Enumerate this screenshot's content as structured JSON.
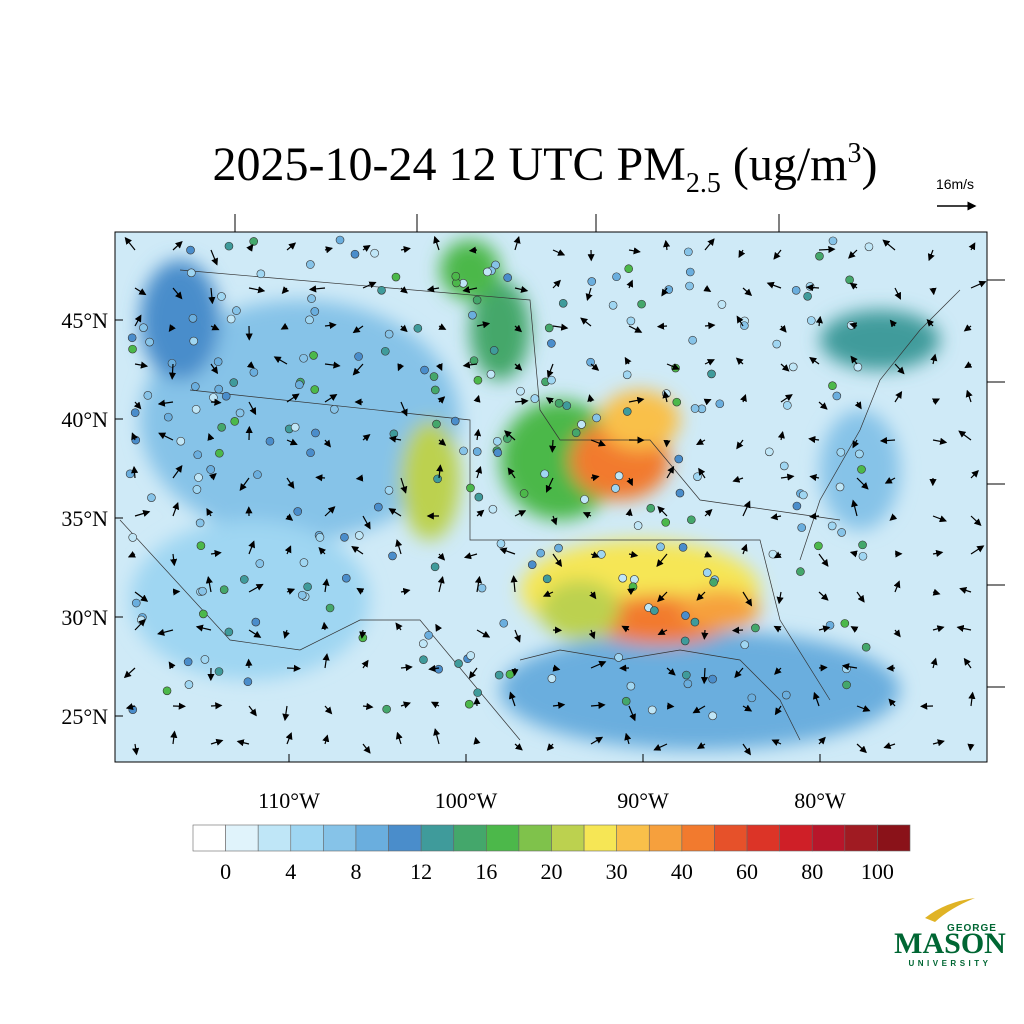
{
  "title": {
    "main": "2025-10-24 12 UTC PM",
    "sub": "2.5",
    "unit_open": " (ug/m",
    "sup": "3",
    "unit_close": ")"
  },
  "vector_reference": "16m/s",
  "lat_labels": [
    {
      "value": 45,
      "label": "45°N"
    },
    {
      "value": 40,
      "label": "40°N"
    },
    {
      "value": 35,
      "label": "35°N"
    },
    {
      "value": 30,
      "label": "30°N"
    },
    {
      "value": 25,
      "label": "25°N"
    }
  ],
  "lon_labels": [
    {
      "value": -110,
      "label": "110°W"
    },
    {
      "value": -100,
      "label": "100°W"
    },
    {
      "value": -90,
      "label": "90°W"
    },
    {
      "value": -80,
      "label": "80°W"
    }
  ],
  "colorbar": {
    "colors": [
      "#ffffff",
      "#e0f3fb",
      "#bfe6f7",
      "#9fd6f2",
      "#86c3e8",
      "#6aaede",
      "#4a8dcb",
      "#3f9b9b",
      "#44a76b",
      "#4cb84a",
      "#7fc24b",
      "#bcd14f",
      "#f6e655",
      "#f9c04a",
      "#f6a03d",
      "#f27a2e",
      "#e6512a",
      "#dc3427",
      "#cf1f27",
      "#b8162a",
      "#a01b22",
      "#8a1219"
    ],
    "labels": [
      0,
      4,
      8,
      12,
      16,
      20,
      30,
      40,
      60,
      80,
      100
    ]
  },
  "logo": {
    "top": "GEORGE",
    "main": "MASON",
    "bottom": "UNIVERSITY"
  }
}
